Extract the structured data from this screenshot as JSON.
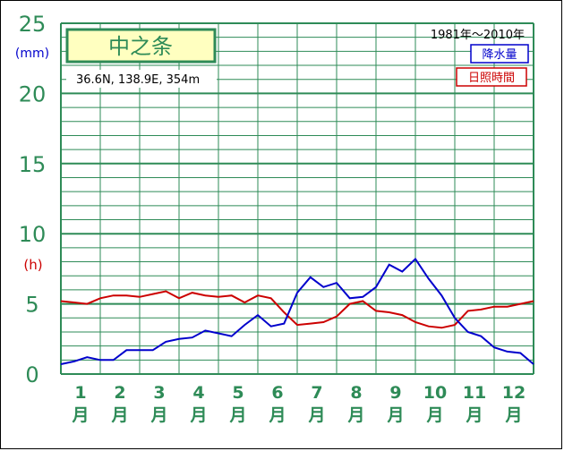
{
  "chart_data": {
    "type": "line",
    "title": "中之条",
    "location": "36.6N, 138.9E, 354m",
    "period": "1981年～2010年",
    "y_unit_precip": "(mm)",
    "y_unit_sun": "(h)",
    "ylim": [
      0,
      25
    ],
    "y_ticks": [
      "0",
      "5",
      "10",
      "15",
      "20",
      "25"
    ],
    "x_month_numbers": [
      "1",
      "2",
      "3",
      "4",
      "5",
      "6",
      "7",
      "8",
      "9",
      "10",
      "11",
      "12"
    ],
    "x_month_suffix": "月",
    "x_range": [
      1,
      73
    ],
    "colors": {
      "grid": "#2e8b57",
      "precip": "#0000cc",
      "sun": "#cc0000",
      "title_bg": "#ffffc0"
    },
    "series": [
      {
        "name": "降水量",
        "color": "#0000cc",
        "x": [
          1,
          3,
          5,
          7,
          9,
          11,
          13,
          15,
          17,
          19,
          21,
          23,
          25,
          27,
          29,
          31,
          33,
          35,
          37,
          39,
          41,
          43,
          45,
          47,
          49,
          51,
          53,
          55,
          57,
          59,
          61,
          63,
          65,
          67,
          69,
          71,
          73
        ],
        "values": [
          0.7,
          0.9,
          1.2,
          1.0,
          1.0,
          1.7,
          1.7,
          1.7,
          2.3,
          2.5,
          2.6,
          3.1,
          2.9,
          2.7,
          3.5,
          4.2,
          3.4,
          3.6,
          5.8,
          6.9,
          6.2,
          6.5,
          5.4,
          5.5,
          6.2,
          7.8,
          7.3,
          8.2,
          6.8,
          5.6,
          4.0,
          3.0,
          2.7,
          1.9,
          1.6,
          1.5,
          0.7
        ]
      },
      {
        "name": "日照時間",
        "color": "#cc0000",
        "x": [
          1,
          3,
          5,
          7,
          9,
          11,
          13,
          15,
          17,
          19,
          21,
          23,
          25,
          27,
          29,
          31,
          33,
          35,
          37,
          39,
          41,
          43,
          45,
          47,
          49,
          51,
          53,
          55,
          57,
          59,
          61,
          63,
          65,
          67,
          69,
          71,
          73
        ],
        "values": [
          5.2,
          5.1,
          5.0,
          5.4,
          5.6,
          5.6,
          5.5,
          5.7,
          5.9,
          5.4,
          5.8,
          5.6,
          5.5,
          5.6,
          5.1,
          5.6,
          5.4,
          4.4,
          3.5,
          3.6,
          3.7,
          4.1,
          5.0,
          5.2,
          4.5,
          4.4,
          4.2,
          3.7,
          3.4,
          3.3,
          3.5,
          4.5,
          4.6,
          4.8,
          4.8,
          5.0,
          5.2
        ]
      }
    ]
  }
}
